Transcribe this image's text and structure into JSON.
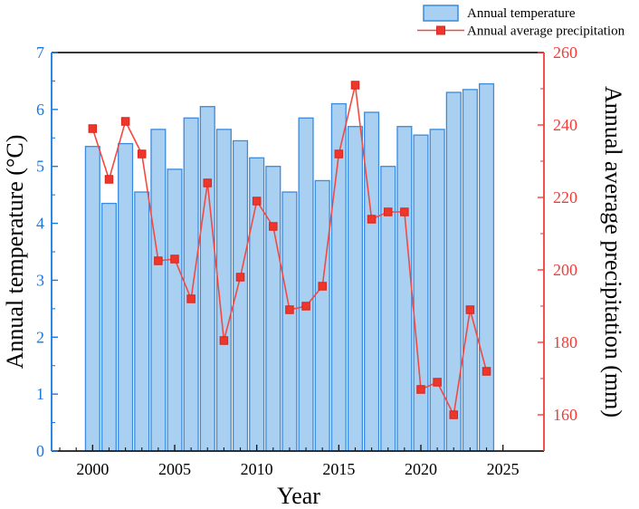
{
  "legend": {
    "items": [
      {
        "label": "Annual temperature",
        "swatch": "bar-swatch"
      },
      {
        "label": "Annual average precipitation",
        "swatch": "line-marker-swatch"
      }
    ]
  },
  "chart_data": {
    "type": "bar+line combo",
    "x": [
      2000,
      2001,
      2002,
      2003,
      2004,
      2005,
      2006,
      2007,
      2008,
      2009,
      2010,
      2011,
      2012,
      2013,
      2014,
      2015,
      2016,
      2017,
      2018,
      2019,
      2020,
      2021,
      2022,
      2023,
      2024
    ],
    "series": [
      {
        "name": "Annual temperature",
        "type": "bar",
        "axis": "left",
        "values": [
          5.35,
          4.35,
          5.4,
          4.55,
          5.65,
          4.95,
          5.85,
          6.05,
          5.65,
          5.45,
          5.15,
          5.0,
          4.55,
          5.85,
          4.75,
          6.1,
          5.7,
          5.95,
          5.0,
          5.7,
          5.55,
          5.65,
          6.3,
          6.35,
          6.45
        ]
      },
      {
        "name": "Annual average precipitation",
        "type": "line",
        "axis": "right",
        "values": [
          239,
          225,
          241,
          232,
          202.5,
          203,
          192,
          224,
          180.5,
          198,
          219,
          212,
          189,
          190,
          195.5,
          232,
          251,
          214,
          216,
          216,
          167,
          169,
          160,
          189,
          172
        ]
      }
    ],
    "xlabel": "Year",
    "ylabel_left": "Annual temperature (°C)",
    "ylabel_right": "Annual average precipitation (mm)",
    "xlim": [
      1997.5,
      2027.5
    ],
    "ylim_left": [
      0,
      7
    ],
    "ylim_right": [
      150,
      260
    ],
    "x_ticks": [
      2000,
      2005,
      2010,
      2015,
      2020,
      2025
    ],
    "x_minor_tick_step": 1,
    "y_left_ticks": [
      0,
      1,
      2,
      3,
      4,
      5,
      6,
      7
    ],
    "y_left_minor_tick_step": 0.5,
    "y_right_ticks": [
      160,
      180,
      200,
      220,
      240,
      260
    ],
    "y_right_minor_tick_step": 10,
    "grid": false,
    "legend_position": "top-right"
  },
  "colors": {
    "bar_fill": "#a9d0f1",
    "bar_edge": "#3a8ade",
    "line": "#f24a42",
    "marker_fill": "#ee362b",
    "marker_edge": "#d8271f",
    "left_axis": "#1778e2",
    "right_axis": "#f23c3c",
    "black_axis": "#1a1a1a",
    "tick_label_x": "#000000"
  }
}
